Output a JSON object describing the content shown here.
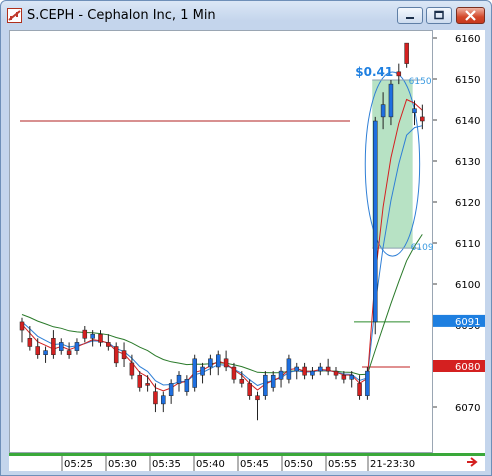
{
  "window": {
    "title": "S.CEPH - Cephalon Inc, 1 Min",
    "buttons": [
      "minimize",
      "maximize",
      "close"
    ]
  },
  "chart_data": {
    "type": "candlestick",
    "price_axis_ticks": [
      6070,
      6080,
      6090,
      6100,
      6110,
      6120,
      6130,
      6140,
      6150,
      6160
    ],
    "time_axis_ticks": [
      "05:25",
      "05:30",
      "05:35",
      "05:40",
      "05:45",
      "05:50",
      "05:55",
      "21-23:30"
    ],
    "price_tags": [
      {
        "value": 6091,
        "label": "6091",
        "color": "#1e7fe0"
      },
      {
        "value": 6080,
        "label": "6080",
        "color": "#d42020"
      }
    ],
    "annotations": [
      {
        "text": "$0.41",
        "color": "#1e7fe0"
      },
      {
        "text": "6150",
        "color": "#3a9ae0"
      },
      {
        "text": "6109",
        "color": "#3a9ae0"
      }
    ],
    "horizontal_lines": [
      {
        "value": 6140,
        "color": "#b02020"
      },
      {
        "value": 6091,
        "color": "#2a8a2a"
      },
      {
        "value": 6080,
        "color": "#c02020"
      }
    ],
    "candles": [
      {
        "o": 6089,
        "h": 6092,
        "l": 6086,
        "c": 6091,
        "color": "red"
      },
      {
        "o": 6087,
        "h": 6090,
        "l": 6084,
        "c": 6085,
        "color": "red"
      },
      {
        "o": 6085,
        "h": 6087,
        "l": 6082,
        "c": 6083,
        "color": "red"
      },
      {
        "o": 6083,
        "h": 6085,
        "l": 6081,
        "c": 6084,
        "color": "blue"
      },
      {
        "o": 6087,
        "h": 6089,
        "l": 6082,
        "c": 6083,
        "color": "red"
      },
      {
        "o": 6084,
        "h": 6087,
        "l": 6083,
        "c": 6086,
        "color": "blue"
      },
      {
        "o": 6084,
        "h": 6086,
        "l": 6082,
        "c": 6083,
        "color": "red"
      },
      {
        "o": 6084,
        "h": 6087,
        "l": 6083,
        "c": 6086,
        "color": "blue"
      },
      {
        "o": 6089,
        "h": 6090,
        "l": 6086,
        "c": 6087,
        "color": "red"
      },
      {
        "o": 6087,
        "h": 6089,
        "l": 6085,
        "c": 6088,
        "color": "blue"
      },
      {
        "o": 6088,
        "h": 6089,
        "l": 6085,
        "c": 6086,
        "color": "red"
      },
      {
        "o": 6086,
        "h": 6088,
        "l": 6084,
        "c": 6085,
        "color": "red"
      },
      {
        "o": 6085,
        "h": 6086,
        "l": 6080,
        "c": 6081,
        "color": "red"
      },
      {
        "o": 6084,
        "h": 6086,
        "l": 6080,
        "c": 6082,
        "color": "red"
      },
      {
        "o": 6081,
        "h": 6083,
        "l": 6077,
        "c": 6078,
        "color": "red"
      },
      {
        "o": 6078,
        "h": 6079,
        "l": 6074,
        "c": 6075,
        "color": "red"
      },
      {
        "o": 6076,
        "h": 6078,
        "l": 6074,
        "c": 6076,
        "color": "red"
      },
      {
        "o": 6074,
        "h": 6076,
        "l": 6069,
        "c": 6071,
        "color": "red"
      },
      {
        "o": 6071,
        "h": 6074,
        "l": 6069,
        "c": 6073,
        "color": "blue"
      },
      {
        "o": 6073,
        "h": 6077,
        "l": 6071,
        "c": 6076,
        "color": "blue"
      },
      {
        "o": 6076,
        "h": 6079,
        "l": 6074,
        "c": 6078,
        "color": "blue"
      },
      {
        "o": 6074,
        "h": 6078,
        "l": 6073,
        "c": 6077,
        "color": "blue"
      },
      {
        "o": 6075,
        "h": 6083,
        "l": 6074,
        "c": 6082,
        "color": "blue"
      },
      {
        "o": 6078,
        "h": 6081,
        "l": 6076,
        "c": 6080,
        "color": "blue"
      },
      {
        "o": 6080,
        "h": 6083,
        "l": 6078,
        "c": 6082,
        "color": "blue"
      },
      {
        "o": 6080,
        "h": 6084,
        "l": 6078,
        "c": 6083,
        "color": "blue"
      },
      {
        "o": 6082,
        "h": 6084,
        "l": 6079,
        "c": 6080,
        "color": "red"
      },
      {
        "o": 6080,
        "h": 6081,
        "l": 6076,
        "c": 6077,
        "color": "red"
      },
      {
        "o": 6077,
        "h": 6079,
        "l": 6075,
        "c": 6076,
        "color": "red"
      },
      {
        "o": 6076,
        "h": 6077,
        "l": 6072,
        "c": 6073,
        "color": "red"
      },
      {
        "o": 6073,
        "h": 6074,
        "l": 6067,
        "c": 6072,
        "color": "red"
      },
      {
        "o": 6073,
        "h": 6079,
        "l": 6072,
        "c": 6078,
        "color": "blue"
      },
      {
        "o": 6075,
        "h": 6079,
        "l": 6074,
        "c": 6078,
        "color": "blue"
      },
      {
        "o": 6077,
        "h": 6080,
        "l": 6075,
        "c": 6079,
        "color": "blue"
      },
      {
        "o": 6077,
        "h": 6083,
        "l": 6076,
        "c": 6082,
        "color": "blue"
      },
      {
        "o": 6079,
        "h": 6081,
        "l": 6077,
        "c": 6080,
        "color": "blue"
      },
      {
        "o": 6080,
        "h": 6081,
        "l": 6077,
        "c": 6078,
        "color": "red"
      },
      {
        "o": 6078,
        "h": 6080,
        "l": 6077,
        "c": 6079,
        "color": "blue"
      },
      {
        "o": 6079,
        "h": 6081,
        "l": 6078,
        "c": 6080,
        "color": "blue"
      },
      {
        "o": 6080,
        "h": 6082,
        "l": 6078,
        "c": 6079,
        "color": "red"
      },
      {
        "o": 6079,
        "h": 6080,
        "l": 6077,
        "c": 6078,
        "color": "red"
      },
      {
        "o": 6078,
        "h": 6079,
        "l": 6076,
        "c": 6077,
        "color": "red"
      },
      {
        "o": 6077,
        "h": 6079,
        "l": 6075,
        "c": 6078,
        "color": "blue"
      },
      {
        "o": 6076,
        "h": 6078,
        "l": 6072,
        "c": 6073,
        "color": "red"
      },
      {
        "o": 6073,
        "h": 6080,
        "l": 6072,
        "c": 6079,
        "color": "blue"
      },
      {
        "o": 6091,
        "h": 6141,
        "l": 6088,
        "c": 6140,
        "color": "blue"
      },
      {
        "o": 6141,
        "h": 6147,
        "l": 6138,
        "c": 6144,
        "color": "blue"
      },
      {
        "o": 6141,
        "h": 6150,
        "l": 6139,
        "c": 6149,
        "color": "blue"
      },
      {
        "o": 6151,
        "h": 6154,
        "l": 6149,
        "c": 6152,
        "color": "red"
      },
      {
        "o": 6159,
        "h": 6159,
        "l": 6153,
        "c": 6154,
        "color": "red"
      },
      {
        "o": 6142,
        "h": 6145,
        "l": 6139,
        "c": 6143,
        "color": "blue"
      },
      {
        "o": 6141,
        "h": 6144,
        "l": 6138,
        "c": 6140,
        "color": "red"
      }
    ]
  }
}
